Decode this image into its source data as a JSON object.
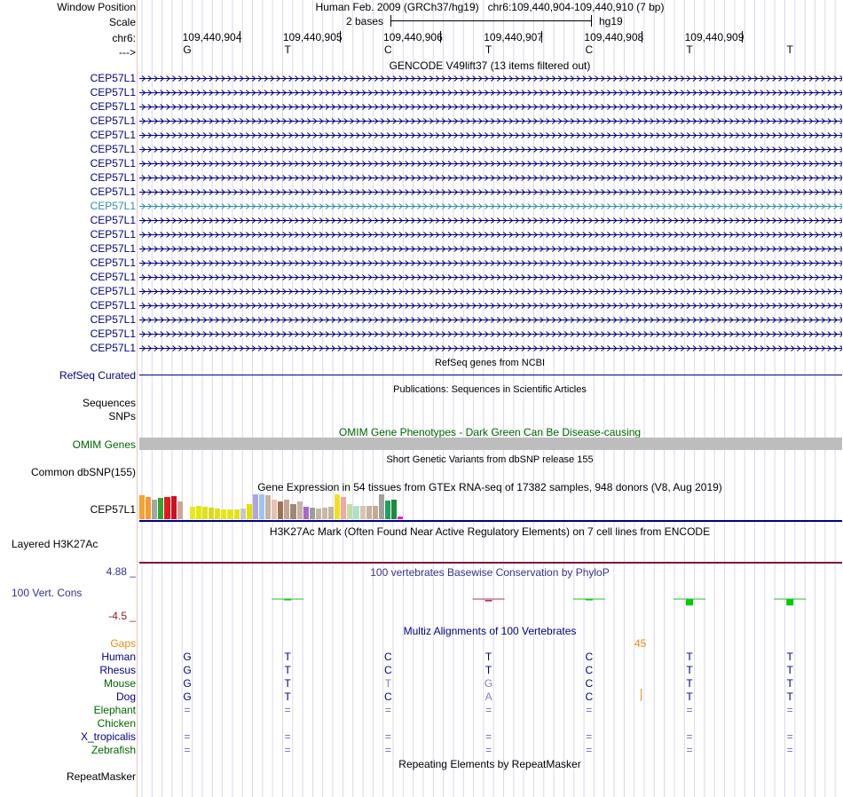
{
  "header": {
    "window_position_label": "Window Position",
    "window_position_value": "Human Feb. 2009 (GRCh37/hg19)   chr6:109,440,904-109,440,910 (7 bp)",
    "scale_label": "Scale",
    "scale_value": "2 bases",
    "scale_assembly": "hg19",
    "chrom_label": "chr6:",
    "strand_label": "--->"
  },
  "ruler": {
    "positions": [
      "109,440,904",
      "109,440,905",
      "109,440,906",
      "109,440,907",
      "109,440,908",
      "109,440,909"
    ],
    "bases": [
      "G",
      "T",
      "C",
      "T",
      "C",
      "T",
      "T"
    ]
  },
  "gencode": {
    "title": "GENCODE V49lift37 (13 items filtered out)",
    "genes": [
      "CEP57L1",
      "CEP57L1",
      "CEP57L1",
      "CEP57L1",
      "CEP57L1",
      "CEP57L1",
      "CEP57L1",
      "CEP57L1",
      "CEP57L1",
      "CEP57L1",
      "CEP57L1",
      "CEP57L1",
      "CEP57L1",
      "CEP57L1",
      "CEP57L1",
      "CEP57L1",
      "CEP57L1",
      "CEP57L1",
      "CEP57L1",
      "CEP57L1"
    ],
    "highlight_index": 9
  },
  "refseq": {
    "title": "RefSeq genes from NCBI",
    "label": "RefSeq Curated"
  },
  "publications": {
    "title": "Publications: Sequences in Scientific Articles",
    "label1": "Sequences",
    "label2": "SNPs"
  },
  "omim": {
    "title": "OMIM Gene Phenotypes - Dark Green Can Be Disease-causing",
    "label": "OMIM Genes"
  },
  "dbsnp": {
    "title": "Short Genetic Variants from dbSNP release 155",
    "label": "Common dbSNP(155)"
  },
  "gtex": {
    "title": "Gene Expression in 54 tissues from GTEx RNA-seq of 17382 samples, 948 donors (V8, Aug 2019)",
    "label": "CEP57L1",
    "colors": [
      "#f7a035",
      "#f39c2f",
      "#a5a5a5",
      "#30a530",
      "#e41a1c",
      "#d01020",
      "#c8a898",
      "#ffffff",
      "#e8e820",
      "#e6e600",
      "#e0e020",
      "#dada20",
      "#e0e020",
      "#e6e618",
      "#e4e420",
      "#e2e21c",
      "#c7c7c7",
      "#e0e000",
      "#b2a4e0",
      "#9ec4f0",
      "#c7b2a4",
      "#e6c0b0",
      "#9c7454",
      "#c4a494",
      "#a08878",
      "#c8b4a0",
      "#a868c8",
      "#9c9c9c",
      "#c4b4a4",
      "#c8b8a8",
      "#c0b4a4",
      "#f0e020",
      "#f0a8a0",
      "#c0e0a0",
      "#b0e0c8",
      "#d4c4b4",
      "#c8b0a0",
      "#c8a890",
      "#a0a0a0",
      "#20a060",
      "#208a40",
      "#e020e0"
    ],
    "values": [
      0.95,
      0.9,
      0.8,
      0.85,
      0.9,
      0.92,
      0.7,
      0.1,
      0.5,
      0.55,
      0.5,
      0.45,
      0.42,
      0.4,
      0.4,
      0.38,
      0.42,
      0.6,
      1.0,
      1.0,
      0.95,
      0.78,
      0.72,
      0.78,
      0.6,
      0.72,
      0.5,
      0.45,
      0.42,
      0.45,
      0.5,
      1.0,
      0.9,
      0.6,
      0.55,
      0.55,
      0.52,
      0.55,
      1.0,
      0.75,
      0.8,
      0.1
    ]
  },
  "h3k27ac": {
    "title": "H3K27Ac Mark (Often Found Near Active Regulatory Elements) on 7 cell lines from ENCODE",
    "label": "Layered H3K27Ac"
  },
  "phylop": {
    "title": "100 vertebrates Basewise Conservation by PhyloP",
    "label": "100 Vert. Cons",
    "max_label": "4.88 _",
    "min_label": "-4.5 _",
    "scores": [
      0.0,
      0.15,
      0.0,
      -0.2,
      0.1,
      0.9,
      0.9
    ]
  },
  "multiz": {
    "title": "Multiz Alignments of 100 Vertebrates",
    "gaps_label": "Gaps",
    "gaps_value": "45",
    "species": [
      {
        "name": "Human",
        "bases": [
          "G",
          "T",
          "C",
          "T",
          "C",
          "T",
          "T"
        ]
      },
      {
        "name": "Rhesus",
        "bases": [
          "G",
          "T",
          "C",
          "T",
          "C",
          "T",
          "T"
        ]
      },
      {
        "name": "Mouse",
        "bases": [
          "G",
          "T",
          "T",
          "G",
          "C",
          "T",
          "T"
        ]
      },
      {
        "name": "Dog",
        "bases": [
          "G",
          "T",
          "C",
          "A",
          "C",
          "T",
          "T"
        ]
      },
      {
        "name": "Elephant",
        "bases": [
          "=",
          "=",
          "=",
          "=",
          "=",
          "=",
          "="
        ]
      },
      {
        "name": "Chicken",
        "bases": [
          "",
          "",
          "",
          "",
          "",
          "",
          ""
        ]
      },
      {
        "name": "X_tropicalis",
        "bases": [
          "=",
          "=",
          "=",
          "=",
          "=",
          "=",
          "="
        ]
      },
      {
        "name": "Zebrafish",
        "bases": [
          "=",
          "=",
          "=",
          "=",
          "=",
          "=",
          "="
        ]
      }
    ]
  },
  "repeatmasker": {
    "title": "Repeating Elements by RepeatMasker",
    "label": "RepeatMasker"
  }
}
